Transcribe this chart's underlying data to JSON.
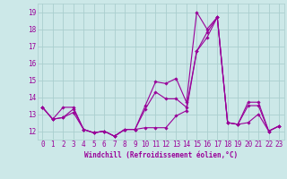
{
  "xlabel": "Windchill (Refroidissement éolien,°C)",
  "x": [
    0,
    1,
    2,
    3,
    4,
    5,
    6,
    7,
    8,
    9,
    10,
    11,
    12,
    13,
    14,
    15,
    16,
    17,
    18,
    19,
    20,
    21,
    22,
    23
  ],
  "line1": [
    13.4,
    12.7,
    13.4,
    13.4,
    12.1,
    11.9,
    12.0,
    11.7,
    12.1,
    12.1,
    13.5,
    14.9,
    14.8,
    15.1,
    13.7,
    19.0,
    18.0,
    18.7,
    12.5,
    12.4,
    13.7,
    13.7,
    12.0,
    12.3
  ],
  "line2": [
    13.4,
    12.7,
    12.8,
    13.3,
    12.1,
    11.9,
    12.0,
    11.7,
    12.1,
    12.1,
    13.3,
    14.3,
    13.9,
    13.9,
    13.4,
    16.7,
    17.8,
    18.7,
    12.5,
    12.4,
    13.5,
    13.5,
    12.0,
    12.3
  ],
  "line3": [
    13.4,
    12.7,
    12.8,
    13.1,
    12.1,
    11.9,
    12.0,
    11.7,
    12.1,
    12.1,
    12.2,
    12.2,
    12.2,
    12.9,
    13.2,
    16.7,
    17.5,
    18.7,
    12.5,
    12.4,
    12.5,
    13.0,
    12.0,
    12.3
  ],
  "ylim": [
    11.5,
    19.5
  ],
  "yticks": [
    12,
    13,
    14,
    15,
    16,
    17,
    18,
    19
  ],
  "line_color": "#990099",
  "bg_color": "#cce8e8",
  "grid_color": "#aacece",
  "marker": "D",
  "marker_size": 1.8,
  "linewidth": 0.8,
  "tick_fontsize": 5.5,
  "xlabel_fontsize": 5.5
}
